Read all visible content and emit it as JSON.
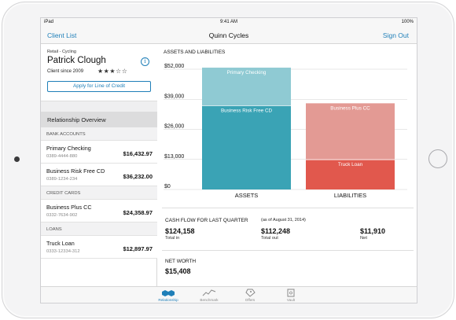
{
  "status_bar": {
    "carrier": "iPad",
    "time": "9:41 AM",
    "battery": "100%"
  },
  "nav": {
    "back_label": "Client List",
    "title": "Quinn Cycles",
    "sign_out_label": "Sign Out"
  },
  "client": {
    "segment": "Retail - Cycling",
    "name": "Patrick Clough",
    "since": "Client since 2009",
    "stars": "★★★☆☆",
    "credit_button_label": "Apply for Line of Credit"
  },
  "sidebar": {
    "overview_label": "Relationship Overview",
    "sections": [
      {
        "header": "BANK ACCOUNTS",
        "accounts": [
          {
            "name": "Primary Checking",
            "number": "0389-4444-880",
            "balance": "$16,432.97"
          },
          {
            "name": "Business Risk Free CD",
            "number": "0389-1234-234",
            "balance": "$36,232.00"
          }
        ]
      },
      {
        "header": "CREDIT CARDS",
        "accounts": [
          {
            "name": "Business Plus CC",
            "number": "0332-7634-902",
            "balance": "$24,358.97"
          }
        ]
      },
      {
        "header": "LOANS",
        "accounts": [
          {
            "name": "Truck Loan",
            "number": "0333-12334-312",
            "balance": "$12,897.97"
          }
        ]
      }
    ]
  },
  "assets_section_title": "ASSETS AND LIABILITIES",
  "chart_data": {
    "type": "bar",
    "stacked": true,
    "categories": [
      "ASSETS",
      "LIABILITIES"
    ],
    "ylim": [
      0,
      52000
    ],
    "ytick_labels": [
      "$0",
      "$13,000",
      "$26,000",
      "$39,000",
      "$52,000"
    ],
    "yticks": [
      0,
      13000,
      26000,
      39000,
      52000
    ],
    "grid": true,
    "segments": [
      {
        "category": "ASSETS",
        "label": "Business Risk Free CD",
        "bottom": 0,
        "top": 36232,
        "color": "#3aa3b5"
      },
      {
        "category": "ASSETS",
        "label": "Primary Checking",
        "bottom": 36232,
        "top": 52665,
        "color": "#8fcad3"
      },
      {
        "category": "LIABILITIES",
        "label": "Truck Loan",
        "bottom": 0,
        "top": 12898,
        "color": "#e1584d"
      },
      {
        "category": "LIABILITIES",
        "label": "Business Plus CC",
        "bottom": 12898,
        "top": 37257,
        "color": "#e39a94"
      }
    ]
  },
  "cash_flow": {
    "title": "CASH FLOW FOR LAST QUARTER",
    "date": "(as of August 31, 2014)",
    "items": [
      {
        "value": "$124,158",
        "label": "Total in"
      },
      {
        "value": "$112,248",
        "label": "Total out"
      },
      {
        "value": "$11,910",
        "label": "Net"
      }
    ]
  },
  "net_worth": {
    "title": "NET WORTH",
    "value": "$15,408"
  },
  "tabs": [
    {
      "label": "Relationship",
      "icon": "handshake-icon",
      "active": true
    },
    {
      "label": "Benchmark",
      "icon": "trend-icon",
      "active": false
    },
    {
      "label": "Offers",
      "icon": "tag-icon",
      "active": false
    },
    {
      "label": "Vault",
      "icon": "vault-icon",
      "active": false
    }
  ],
  "colors": {
    "accent": "#1f7fb8"
  }
}
